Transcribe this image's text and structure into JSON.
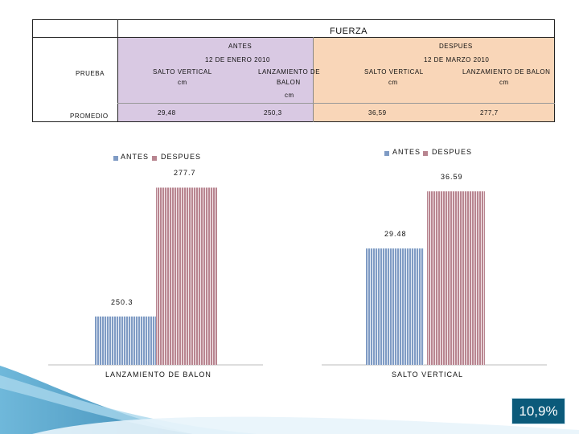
{
  "table": {
    "title": "FUERZA",
    "antes_label": "ANTES",
    "despues_label": "DESPUES",
    "antes_date": "12 DE ENERO 2010",
    "despues_date": "12 DE MARZO 2010",
    "prueba_label": "PRUEBA",
    "promedio_label": "PROMEDIO",
    "col1": "SALTO VERTICAL",
    "col1_unit": "cm",
    "col2_line1": "LANZAMIENTO DE",
    "col2_line2": "BALON",
    "col2_unit": "cm",
    "col3": "SALTO VERTICAL",
    "col3_unit": "cm",
    "col4": "LANZAMIENTO DE BALON",
    "col4_unit": "cm",
    "v1": "29,48",
    "v2": "250,3",
    "v3": "36,59",
    "v4": "277,7",
    "colors": {
      "antes_bg": "#d9c9e3",
      "despues_bg": "#f9d6b8"
    }
  },
  "chart_data": [
    {
      "type": "bar",
      "title": "LANZAMIENTO DE BALON",
      "categories": [
        "ANTES",
        "DESPUES"
      ],
      "values": [
        250.3,
        277.7
      ],
      "value_labels": [
        "250.3",
        "277.7"
      ],
      "legend": [
        "ANTES",
        "DESPUES"
      ],
      "colors": [
        "#7f9bc4",
        "#b88590"
      ],
      "ylim": [
        240,
        280
      ]
    },
    {
      "type": "bar",
      "title": "SALTO VERTICAL",
      "categories": [
        "ANTES",
        "DESPUES"
      ],
      "values": [
        29.48,
        36.59
      ],
      "value_labels": [
        "29.48",
        "36.59"
      ],
      "legend": [
        "ANTES",
        "DESPUES"
      ],
      "colors": [
        "#7f9bc4",
        "#b88590"
      ],
      "ylim": [
        15,
        37.5
      ]
    }
  ],
  "badge": {
    "text": "10,9%",
    "bg": "#0b5a7a"
  }
}
